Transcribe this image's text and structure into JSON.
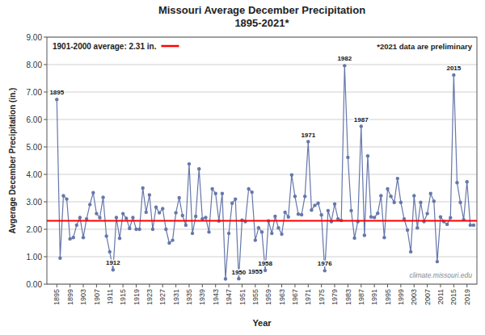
{
  "chart_data": {
    "type": "line",
    "title": "Missouri Average December Precipitation\n1895-2021*",
    "x_label": "Year",
    "y_label": "Avgerage December Precipitation (in.)",
    "x": [
      1895,
      1896,
      1897,
      1898,
      1899,
      1900,
      1901,
      1902,
      1903,
      1904,
      1905,
      1906,
      1907,
      1908,
      1909,
      1910,
      1911,
      1912,
      1913,
      1914,
      1915,
      1916,
      1917,
      1918,
      1919,
      1920,
      1921,
      1922,
      1923,
      1924,
      1925,
      1926,
      1927,
      1928,
      1929,
      1930,
      1931,
      1932,
      1933,
      1934,
      1935,
      1936,
      1937,
      1938,
      1939,
      1940,
      1941,
      1942,
      1943,
      1944,
      1945,
      1946,
      1947,
      1948,
      1949,
      1950,
      1951,
      1952,
      1953,
      1954,
      1955,
      1956,
      1957,
      1958,
      1959,
      1960,
      1961,
      1962,
      1963,
      1964,
      1965,
      1966,
      1967,
      1968,
      1969,
      1970,
      1971,
      1972,
      1973,
      1974,
      1975,
      1976,
      1977,
      1978,
      1979,
      1980,
      1981,
      1982,
      1983,
      1984,
      1985,
      1986,
      1987,
      1988,
      1989,
      1990,
      1991,
      1992,
      1993,
      1994,
      1995,
      1996,
      1997,
      1998,
      1999,
      2000,
      2001,
      2002,
      2003,
      2004,
      2005,
      2006,
      2007,
      2008,
      2009,
      2010,
      2011,
      2012,
      2013,
      2014,
      2015,
      2016,
      2017,
      2018,
      2019,
      2020,
      2021
    ],
    "series": [
      {
        "color": "#6677AA",
        "marker": "circle",
        "values": [
          6.73,
          0.95,
          3.22,
          3.1,
          1.65,
          1.7,
          2.15,
          2.43,
          1.7,
          2.38,
          2.9,
          3.33,
          2.57,
          2.42,
          3.16,
          1.75,
          1.18,
          0.52,
          2.43,
          1.67,
          2.57,
          2.4,
          2.03,
          2.43,
          2.0,
          2.0,
          3.5,
          2.62,
          3.25,
          2.0,
          2.8,
          2.6,
          2.75,
          2.0,
          1.5,
          1.6,
          2.6,
          3.15,
          2.5,
          2.15,
          4.38,
          1.85,
          2.47,
          4.2,
          2.38,
          2.43,
          1.9,
          3.47,
          3.3,
          2.3,
          3.3,
          0.19,
          1.85,
          2.95,
          3.1,
          0.2,
          2.33,
          2.28,
          3.47,
          3.35,
          1.6,
          2.05,
          1.9,
          0.5,
          2.3,
          1.85,
          2.47,
          2.05,
          1.82,
          2.62,
          2.45,
          3.98,
          3.2,
          2.55,
          2.53,
          3.2,
          5.19,
          2.7,
          2.87,
          2.95,
          2.52,
          0.49,
          2.68,
          2.28,
          2.92,
          2.38,
          2.32,
          7.96,
          4.62,
          2.68,
          1.68,
          2.28,
          5.75,
          1.78,
          4.67,
          2.45,
          2.43,
          2.58,
          3.22,
          1.7,
          3.47,
          3.2,
          2.98,
          3.85,
          2.98,
          2.38,
          1.97,
          1.18,
          3.22,
          2.05,
          2.98,
          2.28,
          2.57,
          3.3,
          3.02,
          0.82,
          2.45,
          2.28,
          2.18,
          2.42,
          7.62,
          3.7,
          2.98,
          2.35,
          3.73,
          2.15,
          2.15
        ]
      }
    ],
    "xlim": [
      1892,
      2022
    ],
    "xticks": [
      1895,
      1899,
      1903,
      1907,
      1911,
      1915,
      1919,
      1923,
      1927,
      1931,
      1935,
      1939,
      1943,
      1947,
      1951,
      1955,
      1959,
      1963,
      1967,
      1971,
      1975,
      1979,
      1983,
      1987,
      1991,
      1995,
      1999,
      2003,
      2007,
      2011,
      2015,
      2019
    ],
    "ylim": [
      0.0,
      9.0
    ],
    "yticks": [
      {
        "value": 0.0,
        "label": "0.00"
      },
      {
        "value": 1.0,
        "label": "1.00"
      },
      {
        "value": 2.0,
        "label": "2.00"
      },
      {
        "value": 3.0,
        "label": "3.00"
      },
      {
        "value": 4.0,
        "label": "4.00"
      },
      {
        "value": 5.0,
        "label": "5.00"
      },
      {
        "value": 6.0,
        "label": "6.00"
      },
      {
        "value": 7.0,
        "label": "7.00"
      },
      {
        "value": 8.0,
        "label": "8.00"
      },
      {
        "value": 9.0,
        "label": "9.00"
      }
    ],
    "grid": true,
    "reference_line": {
      "value": 2.31,
      "label": "1901-2000 average: 2.31 in.",
      "color": "#FF0000"
    },
    "annotations": [
      {
        "text": "1895",
        "x": 1895,
        "y": 6.73
      },
      {
        "text": "1912",
        "x": 1912,
        "y": 0.52
      },
      {
        "text": "1950",
        "x": 1950,
        "y": 0.19
      },
      {
        "text": "1955",
        "x": 1955,
        "y": 0.2
      },
      {
        "text": "1958",
        "x": 1958,
        "y": 0.5
      },
      {
        "text": "1971",
        "x": 1971,
        "y": 5.19
      },
      {
        "text": "1976",
        "x": 1976,
        "y": 0.49
      },
      {
        "text": "1982",
        "x": 1982,
        "y": 7.96
      },
      {
        "text": "1987",
        "x": 1987,
        "y": 5.75
      },
      {
        "text": "2015",
        "x": 2015,
        "y": 7.62
      }
    ],
    "note": "*2021 data are preliminary",
    "watermark": "climate.missouri.edu"
  }
}
